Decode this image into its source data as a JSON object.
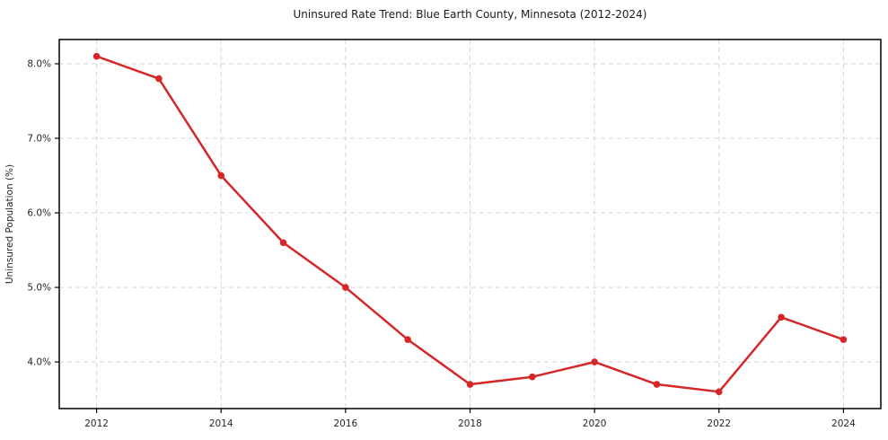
{
  "chart_data": {
    "type": "line",
    "title": "Uninsured Rate Trend: Blue Earth County, Minnesota (2012-2024)",
    "xlabel": "",
    "ylabel": "Uninsured Population (%)",
    "x": [
      2012,
      2013,
      2014,
      2015,
      2016,
      2017,
      2018,
      2019,
      2020,
      2021,
      2022,
      2023,
      2024
    ],
    "values": [
      8.1,
      7.8,
      6.5,
      5.6,
      5.0,
      4.3,
      3.7,
      3.8,
      4.0,
      3.7,
      3.6,
      4.6,
      4.3
    ],
    "xlim": [
      2011.4,
      2024.6
    ],
    "ylim": [
      3.375,
      8.325
    ],
    "x_ticks": [
      2012,
      2014,
      2016,
      2018,
      2020,
      2022,
      2024
    ],
    "x_tick_labels": [
      "2012",
      "2014",
      "2016",
      "2018",
      "2020",
      "2022",
      "2024"
    ],
    "y_ticks": [
      4.0,
      5.0,
      6.0,
      7.0,
      8.0
    ],
    "y_tick_labels": [
      "4.0%",
      "5.0%",
      "6.0%",
      "7.0%",
      "8.0%"
    ],
    "grid": true,
    "legend": "none",
    "line_color": "#d62728",
    "grid_color": "#d4d4d4",
    "axis_color": "#000000",
    "text_color": "#262626",
    "background_color": "#ffffff"
  }
}
